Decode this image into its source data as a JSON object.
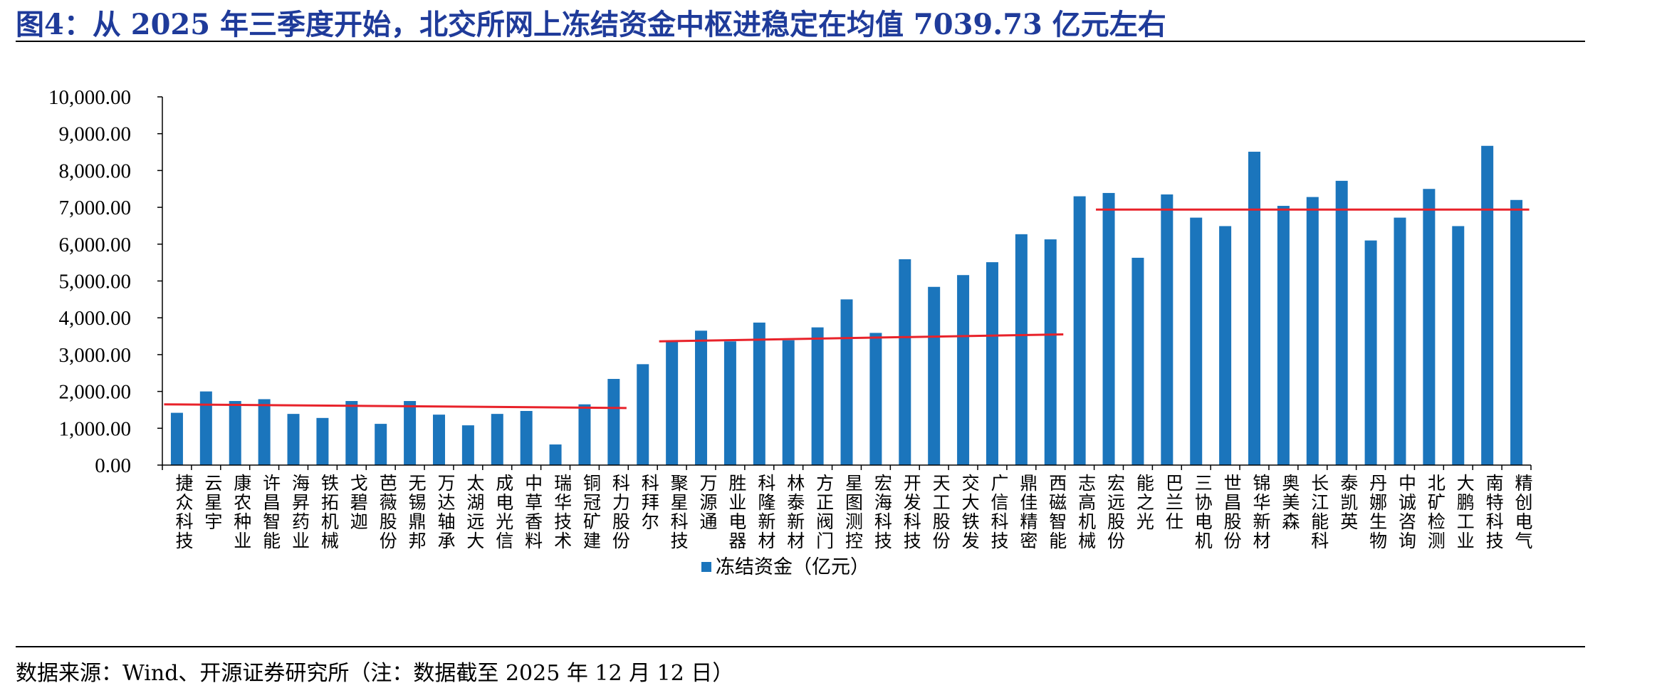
{
  "figure_title": "图4：从 2025 年三季度开始，北交所网上冻结资金中枢进稳定在均值 7039.73 亿元左右",
  "source": "数据来源：Wind、开源证券研究所（注：数据截至 2025 年 12 月 12 日）",
  "chart_data": {
    "type": "bar",
    "categories": [
      "捷众科技",
      "云星宇",
      "康农种业",
      "许昌智能",
      "海昇药业",
      "铁拓机械",
      "戈碧迦",
      "芭薇股份",
      "无锡鼎邦",
      "万达轴承",
      "太湖远大",
      "成电光信",
      "中草香料",
      "瑞华技术",
      "铜冠矿建",
      "科力股份",
      "科拜尔",
      "聚星科技",
      "万源通",
      "胜业电器",
      "科隆新材",
      "林泰新材",
      "方正阀门",
      "星图测控",
      "宏海科技",
      "开发科技",
      "天工股份",
      "交大铁发",
      "广信科技",
      "鼎佳精密",
      "西磁智能",
      "志高机械",
      "宏远股份",
      "能之光",
      "巴兰仕",
      "三协电机",
      "世昌股份",
      "锦华新材",
      "奥美森",
      "长江能科",
      "泰凯英",
      "丹娜生物",
      "中诚咨询",
      "北矿检测",
      "大鹏工业",
      "南特科技",
      "精创电气"
    ],
    "series": [
      {
        "name": "冻结资金（亿元）",
        "color": "#1b75bc",
        "values": [
          1420,
          2000,
          1740,
          1790,
          1390,
          1280,
          1740,
          1120,
          1740,
          1370,
          1080,
          1390,
          1470,
          560,
          1650,
          2340,
          2740,
          3380,
          3650,
          3360,
          3870,
          3390,
          3740,
          4500,
          3590,
          5590,
          4840,
          5160,
          5510,
          6270,
          6130,
          7300,
          7390,
          5630,
          7350,
          6720,
          6490,
          8510,
          7040,
          7280,
          7720,
          6100,
          6720,
          7500,
          6490,
          8670,
          7200
        ]
      }
    ],
    "reference_lines": [
      {
        "from": "捷众科技",
        "to": "科力股份",
        "start_value": 1650,
        "end_value": 1550,
        "color": "#e8222a"
      },
      {
        "from": "聚星科技",
        "to": "西磁智能",
        "start_value": 3360,
        "end_value": 3550,
        "color": "#e8222a"
      },
      {
        "from": "宏远股份",
        "to": "精创电气",
        "start_value": 6940,
        "end_value": 6940,
        "color": "#e8222a"
      }
    ],
    "yticks": [
      "0.00",
      "1,000.00",
      "2,000.00",
      "3,000.00",
      "4,000.00",
      "5,000.00",
      "6,000.00",
      "7,000.00",
      "8,000.00",
      "9,000.00",
      "10,000.00"
    ],
    "ylim": [
      0,
      10000
    ],
    "legend": {
      "label": "冻结资金（亿元）",
      "position": "bottom"
    },
    "grid": false
  }
}
